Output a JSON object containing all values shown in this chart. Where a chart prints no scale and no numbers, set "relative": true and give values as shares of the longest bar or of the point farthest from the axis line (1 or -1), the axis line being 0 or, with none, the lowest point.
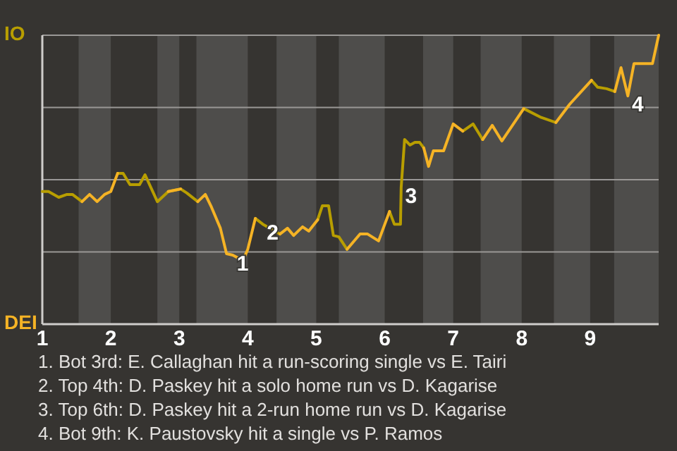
{
  "chart_data": {
    "type": "line",
    "x": [
      1,
      1.09,
      1.24,
      1.36,
      1.44,
      1.58,
      1.69,
      1.8,
      1.91,
      2,
      2.1,
      2.18,
      2.28,
      2.42,
      2.5,
      2.68,
      2.84,
      3.02,
      3.11,
      3.27,
      3.38,
      3.47,
      3.6,
      3.69,
      3.78,
      3.93,
      4,
      4.11,
      4.22,
      4.36,
      4.47,
      4.58,
      4.67,
      4.8,
      4.89,
      5.02,
      5.09,
      5.18,
      5.25,
      5.33,
      5.45,
      5.64,
      5.75,
      5.91,
      6.07,
      6.14,
      6.23,
      6.24,
      6.29,
      6.37,
      6.44,
      6.51,
      6.57,
      6.64,
      6.71,
      6.86,
      7,
      7.14,
      7.29,
      7.43,
      7.57,
      7.71,
      8.03,
      8.27,
      8.5,
      8.7,
      9.02,
      9.11,
      9.24,
      9.36,
      9.45,
      9.55,
      9.64,
      9.91,
      10
    ],
    "series": [
      {
        "color": "#b89e00",
        "values": [
          0.459,
          0.459,
          0.439,
          0.449,
          0.449,
          0.424,
          null,
          null,
          null,
          null,
          0.522,
          0.522,
          0.483,
          0.483,
          0.517,
          0.424,
          0.459,
          0.468,
          0.454,
          0.424,
          null,
          null,
          null,
          null,
          null,
          null,
          null,
          0.366,
          0.346,
          0.327,
          0.312,
          null,
          null,
          null,
          null,
          0.361,
          0.41,
          0.41,
          0.307,
          0.302,
          0.259,
          null,
          null,
          null,
          0.39,
          0.346,
          0.346,
          0.473,
          0.639,
          0.62,
          0.629,
          0.629,
          0.61,
          null,
          null,
          null,
          null,
          0.668,
          0.693,
          0.639,
          null,
          null,
          0.746,
          0.717,
          0.698,
          null,
          0.844,
          0.82,
          0.815,
          0.805,
          null,
          null,
          null,
          null,
          null
        ]
      },
      {
        "color": "#f5b325",
        "values": [
          null,
          null,
          null,
          null,
          null,
          0.424,
          0.449,
          0.424,
          0.449,
          0.459,
          0.522,
          null,
          null,
          null,
          null,
          null,
          0.459,
          0.468,
          null,
          0.424,
          0.449,
          0.405,
          0.332,
          0.244,
          0.239,
          0.22,
          0.259,
          0.366,
          null,
          null,
          0.312,
          0.332,
          0.307,
          0.337,
          0.322,
          0.361,
          null,
          null,
          null,
          null,
          0.259,
          0.312,
          0.312,
          0.288,
          0.39,
          null,
          null,
          null,
          null,
          null,
          null,
          null,
          0.61,
          0.546,
          0.6,
          0.6,
          0.693,
          0.668,
          null,
          0.639,
          0.688,
          0.634,
          0.746,
          null,
          0.698,
          0.761,
          0.844,
          null,
          null,
          0.805,
          0.888,
          0.79,
          0.902,
          0.902,
          1
        ]
      }
    ],
    "relative": true,
    "xlim": [
      1,
      10
    ],
    "xticks": [
      1,
      2,
      3,
      4,
      5,
      6,
      7,
      8,
      9
    ],
    "marker": "none",
    "line_style": "solid",
    "ref_lines": [
      {
        "axis": "y",
        "value": 0.25,
        "color": "#9a9896"
      },
      {
        "axis": "y",
        "value": 0.5,
        "color": "#9a9896"
      },
      {
        "axis": "y",
        "value": 0.75,
        "color": "#9a9896"
      },
      {
        "axis": "y",
        "value": 1,
        "color": "#9a9896"
      }
    ],
    "bands": [
      {
        "axis": "x",
        "from": 1.53,
        "to": 2,
        "color": "#4e4d4b"
      },
      {
        "axis": "x",
        "from": 2.68,
        "to": 3,
        "color": "#4e4d4b"
      },
      {
        "axis": "x",
        "from": 3.25,
        "to": 4,
        "color": "#4e4d4b"
      },
      {
        "axis": "x",
        "from": 4.42,
        "to": 5,
        "color": "#4e4d4b"
      },
      {
        "axis": "x",
        "from": 5.33,
        "to": 6,
        "color": "#4e4d4b"
      },
      {
        "axis": "x",
        "from": 6.56,
        "to": 7,
        "color": "#4e4d4b"
      },
      {
        "axis": "x",
        "from": 7.4,
        "to": 8,
        "color": "#4e4d4b"
      },
      {
        "axis": "x",
        "from": 8.47,
        "to": 9,
        "color": "#4e4d4b"
      },
      {
        "axis": "x",
        "from": 9.35,
        "to": 10,
        "color": "#4e4d4b"
      }
    ],
    "annotations": [
      "IO",
      "DEI",
      {
        "text": "1",
        "x": 3.78,
        "y": 0.239
      },
      {
        "text": "2",
        "x": 4.22,
        "y": 0.346
      },
      {
        "text": "3",
        "x": 6.24,
        "y": 0.473
      },
      {
        "text": "4",
        "x": 9.55,
        "y": 0.79
      },
      "1. Bot 3rd: E. Callaghan hit a run-scoring single vs E. Tairi",
      "2. Top 4th: D. Paskey hit a solo home run vs D. Kagarise",
      "3. Top 6th: D. Paskey hit a 2-run home run vs D. Kagarise",
      "4. Bot 9th: K. Paustovsky hit a single vs P. Ramos"
    ]
  }
}
